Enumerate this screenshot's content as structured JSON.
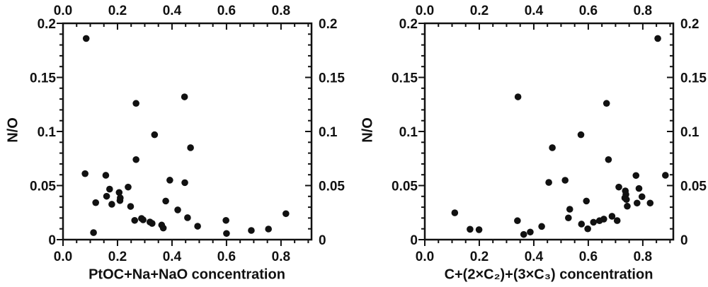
{
  "figure": {
    "background": "#ffffff",
    "dot_color": "#111111",
    "axis_color": "#111111"
  },
  "chart_data": [
    {
      "type": "scatter",
      "title": "",
      "xlabel": "PtOC+Na+NaO concentration",
      "ylabel": "N/O",
      "xlim": [
        0,
        0.912
      ],
      "ylim": [
        0,
        0.2
      ],
      "grid": false,
      "legend": null,
      "x_tick_values": [
        0.0,
        0.2,
        0.4,
        0.6,
        0.8
      ],
      "x_tick_labels": [
        "0.0",
        "0.2",
        "0.4",
        "0.6",
        "0.8"
      ],
      "x_minor_step": 0.05,
      "y_tick_values": [
        0,
        0.05,
        0.1,
        0.15,
        0.2
      ],
      "y_tick_labels": [
        "0",
        "0.05",
        "0.1",
        "0.15",
        "0.2"
      ],
      "y_minor_step": 0.01,
      "points": [
        [
          0.085,
          0.186
        ],
        [
          0.446,
          0.132
        ],
        [
          0.268,
          0.126
        ],
        [
          0.336,
          0.097
        ],
        [
          0.468,
          0.085
        ],
        [
          0.268,
          0.074
        ],
        [
          0.081,
          0.061
        ],
        [
          0.157,
          0.0595
        ],
        [
          0.392,
          0.055
        ],
        [
          0.447,
          0.0527
        ],
        [
          0.239,
          0.0486
        ],
        [
          0.171,
          0.0467
        ],
        [
          0.206,
          0.0436
        ],
        [
          0.16,
          0.0401
        ],
        [
          0.21,
          0.0386
        ],
        [
          0.209,
          0.0361
        ],
        [
          0.377,
          0.0357
        ],
        [
          0.12,
          0.0342
        ],
        [
          0.179,
          0.0327
        ],
        [
          0.248,
          0.0307
        ],
        [
          0.421,
          0.0275
        ],
        [
          0.818,
          0.024
        ],
        [
          0.457,
          0.0203
        ],
        [
          0.288,
          0.0196
        ],
        [
          0.294,
          0.0183
        ],
        [
          0.263,
          0.0178
        ],
        [
          0.598,
          0.0178
        ],
        [
          0.319,
          0.0163
        ],
        [
          0.327,
          0.015
        ],
        [
          0.362,
          0.0135
        ],
        [
          0.494,
          0.0124
        ],
        [
          0.368,
          0.0107
        ],
        [
          0.754,
          0.0098
        ],
        [
          0.691,
          0.0085
        ],
        [
          0.112,
          0.0065
        ],
        [
          0.6,
          0.0057
        ]
      ]
    },
    {
      "type": "scatter",
      "title": "",
      "xlabel": "C+(2×C₂)+(3×C₃) concentration",
      "ylabel": "N/O",
      "xlim": [
        0,
        0.912
      ],
      "ylim": [
        0,
        0.2
      ],
      "grid": false,
      "legend": null,
      "x_tick_values": [
        0.0,
        0.2,
        0.4,
        0.6,
        0.8
      ],
      "x_tick_labels": [
        "0.0",
        "0.2",
        "0.4",
        "0.6",
        "0.8"
      ],
      "x_minor_step": 0.05,
      "y_tick_values": [
        0,
        0.05,
        0.1,
        0.15,
        0.2
      ],
      "y_tick_labels": [
        "0",
        "0.05",
        "0.1",
        "0.15",
        "0.2"
      ],
      "y_minor_step": 0.01,
      "points": [
        [
          0.855,
          0.186
        ],
        [
          0.342,
          0.132
        ],
        [
          0.667,
          0.126
        ],
        [
          0.573,
          0.097
        ],
        [
          0.468,
          0.085
        ],
        [
          0.674,
          0.074
        ],
        [
          0.883,
          0.0595
        ],
        [
          0.775,
          0.0593
        ],
        [
          0.515,
          0.0549
        ],
        [
          0.455,
          0.0529
        ],
        [
          0.712,
          0.0486
        ],
        [
          0.786,
          0.0473
        ],
        [
          0.736,
          0.0451
        ],
        [
          0.738,
          0.0418
        ],
        [
          0.797,
          0.0397
        ],
        [
          0.734,
          0.0386
        ],
        [
          0.74,
          0.0371
        ],
        [
          0.593,
          0.0357
        ],
        [
          0.779,
          0.0338
        ],
        [
          0.827,
          0.0338
        ],
        [
          0.743,
          0.0309
        ],
        [
          0.532,
          0.0281
        ],
        [
          0.11,
          0.0248
        ],
        [
          0.687,
          0.0216
        ],
        [
          0.527,
          0.0201
        ],
        [
          0.657,
          0.019
        ],
        [
          0.641,
          0.0175
        ],
        [
          0.34,
          0.0175
        ],
        [
          0.706,
          0.0176
        ],
        [
          0.619,
          0.0161
        ],
        [
          0.575,
          0.0144
        ],
        [
          0.429,
          0.0122
        ],
        [
          0.598,
          0.01
        ],
        [
          0.166,
          0.0096
        ],
        [
          0.199,
          0.0092
        ],
        [
          0.387,
          0.007
        ],
        [
          0.363,
          0.0048
        ]
      ]
    }
  ]
}
